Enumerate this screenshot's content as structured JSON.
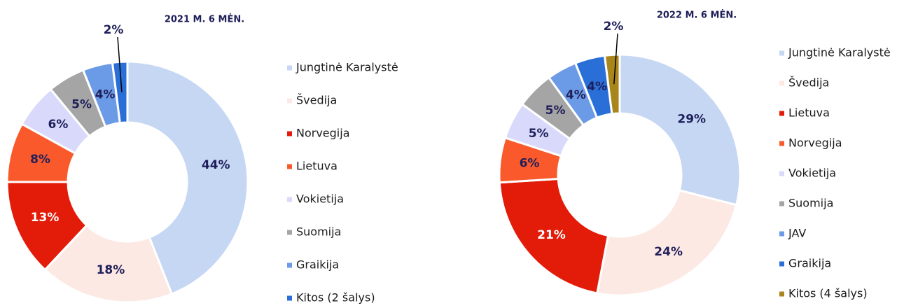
{
  "chart_data": [
    {
      "type": "donut",
      "title": "2021 M. 6 MĖN.",
      "categories": [
        "Jungtinė Karalystė",
        "Švedija",
        "Norvegija",
        "Lietuva",
        "Vokietija",
        "Suomija",
        "Graikija",
        "Kitos (2 šalys)"
      ],
      "values": [
        44,
        18,
        13,
        8,
        6,
        5,
        4,
        2
      ],
      "value_labels": [
        "44%",
        "18%",
        "13%",
        "8%",
        "6%",
        "5%",
        "4%",
        "2%"
      ],
      "colors": [
        "#c5d7f3",
        "#fde9e3",
        "#e31b09",
        "#fa5a2b",
        "#d9d9fb",
        "#a5a5a5",
        "#6b9be6",
        "#2a6fd8"
      ]
    },
    {
      "type": "donut",
      "title": "2022 M. 6 MĖN.",
      "categories": [
        "Jungtinė Karalystė",
        "Švedija",
        "Lietuva",
        "Norvegija",
        "Vokietija",
        "Suomija",
        "JAV",
        "Graikija",
        "Kitos (4 šalys)"
      ],
      "values": [
        29,
        24,
        21,
        6,
        5,
        5,
        4,
        4,
        2
      ],
      "value_labels": [
        "29%",
        "24%",
        "21%",
        "6%",
        "5%",
        "5%",
        "4%",
        "4%",
        "2%"
      ],
      "colors": [
        "#c5d7f3",
        "#fde9e3",
        "#e31b09",
        "#fa5a2b",
        "#d9d9fb",
        "#a5a5a5",
        "#6b9be6",
        "#2a6fd8",
        "#a8861c"
      ]
    }
  ]
}
